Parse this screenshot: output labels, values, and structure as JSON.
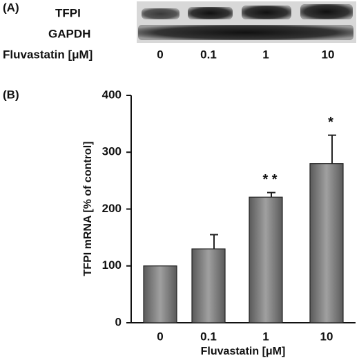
{
  "blot": {
    "label": "(A)",
    "rows": [
      "TFPI",
      "GAPDH"
    ],
    "x_label": "Fluvastatin [μM]",
    "lanes": [
      "0",
      "0.1",
      "1",
      "10"
    ]
  },
  "chart_data": {
    "type": "bar",
    "label": "(B)",
    "y_label": "TFPI mRNA [% of control]",
    "x_label": "Fluvastatin [μM]",
    "categories": [
      "0",
      "0.1",
      "1",
      "10"
    ],
    "values": [
      100,
      130,
      221,
      280
    ],
    "errors": [
      0,
      25,
      8,
      50
    ],
    "annotations": [
      null,
      null,
      "* *",
      "*"
    ],
    "color": "#8a8a8a",
    "ylim": [
      0,
      400
    ],
    "yticks": [
      0,
      100,
      200,
      300,
      400
    ]
  }
}
